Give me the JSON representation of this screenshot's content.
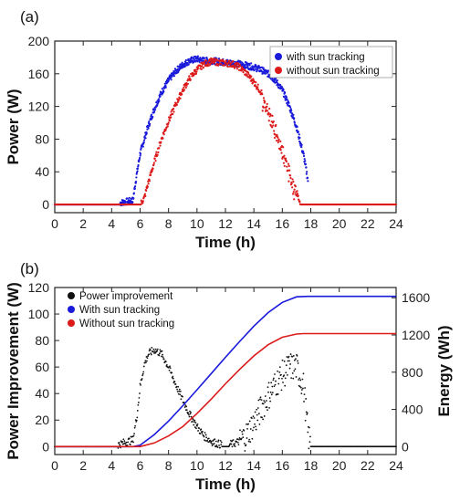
{
  "chart_data": [
    {
      "panel_label": "(a)",
      "type": "scatter",
      "xlabel": "Time (h)",
      "ylabel": "Power (W)",
      "xlim": [
        0,
        24
      ],
      "ylim": [
        -10,
        200
      ],
      "xticks": [
        0,
        2,
        4,
        6,
        8,
        10,
        12,
        14,
        16,
        18,
        20,
        22,
        24
      ],
      "yticks": [
        0,
        40,
        80,
        120,
        160,
        200
      ],
      "legend_position": "top-right",
      "series": [
        {
          "name": "with sun tracking",
          "color": "#1a1adb",
          "x": [
            0,
            2,
            4,
            5.5,
            5.7,
            6,
            6.5,
            7,
            7.5,
            8,
            8.5,
            9,
            9.5,
            10,
            10.5,
            11,
            11.5,
            12,
            12.5,
            13,
            13.5,
            14,
            14.5,
            15,
            15.5,
            16,
            16.5,
            17,
            17.5,
            17.8
          ],
          "y": [
            0,
            0,
            0,
            5,
            30,
            62,
            92,
            117,
            137,
            152,
            163,
            171,
            176,
            178,
            176,
            176,
            175,
            174,
            173,
            172,
            170,
            168,
            165,
            160,
            152,
            140,
            120,
            95,
            60,
            30
          ]
        },
        {
          "name": "without sun tracking",
          "color": "#dc1a1a",
          "x": [
            0,
            2,
            4,
            5.5,
            6,
            6.3,
            6.5,
            7,
            7.5,
            8,
            8.5,
            9,
            9.5,
            10,
            10.5,
            11,
            11.5,
            12,
            12.5,
            13,
            13.5,
            14,
            14.5,
            15,
            15.5,
            16,
            16.5,
            17,
            17.3,
            18,
            20,
            22,
            24
          ],
          "y": [
            0,
            0,
            0,
            0,
            0,
            8,
            22,
            52,
            80,
            102,
            122,
            140,
            155,
            165,
            172,
            175,
            174,
            173,
            172,
            168,
            160,
            150,
            138,
            120,
            98,
            75,
            45,
            15,
            0,
            0,
            0,
            0,
            0
          ]
        }
      ]
    },
    {
      "panel_label": "(b)",
      "type": "line",
      "xlabel": "Time (h)",
      "ylabel": "Power Improvement (W)",
      "y2label": "Energy (Wh)",
      "xlim": [
        0,
        24
      ],
      "ylim": [
        -6,
        120
      ],
      "y2lim": [
        -85,
        1710
      ],
      "xticks": [
        0,
        2,
        4,
        6,
        8,
        10,
        12,
        14,
        16,
        18,
        20,
        22,
        24
      ],
      "yticks": [
        0,
        20,
        40,
        60,
        80,
        100,
        120
      ],
      "y2ticks": [
        0,
        400,
        800,
        1200,
        1600
      ],
      "legend_position": "top-left",
      "series": [
        {
          "name": "Power improvement",
          "color": "#111111",
          "axis": "left",
          "style": "dots",
          "x": [
            0,
            4,
            5.5,
            5.8,
            6,
            6.3,
            6.6,
            7,
            7.5,
            8,
            8.5,
            9,
            9.5,
            10,
            10.5,
            11,
            11.5,
            12,
            12.5,
            13,
            13.5,
            14,
            14.5,
            15,
            15.5,
            16,
            16.5,
            17,
            17.5,
            17.8,
            18,
            20,
            22,
            24
          ],
          "y": [
            0,
            0,
            5,
            25,
            45,
            62,
            70,
            73,
            70,
            60,
            47,
            35,
            24,
            15,
            8,
            4,
            2,
            1,
            2,
            4,
            9,
            18,
            28,
            38,
            47,
            54,
            60,
            60,
            45,
            10,
            0,
            0,
            0,
            0
          ]
        },
        {
          "name": "With sun tracking",
          "color": "#1a1adb",
          "axis": "right",
          "style": "line",
          "x": [
            0,
            5.5,
            6,
            7,
            8,
            9,
            10,
            11,
            12,
            13,
            14,
            15,
            16,
            17,
            17.8,
            18,
            20,
            22,
            24
          ],
          "y": [
            0,
            0,
            15,
            130,
            275,
            440,
            610,
            785,
            960,
            1130,
            1295,
            1440,
            1550,
            1610,
            1615,
            1615,
            1615,
            1615,
            1615
          ]
        },
        {
          "name": "Without sun tracking",
          "color": "#dc1a1a",
          "axis": "right",
          "style": "line",
          "x": [
            0,
            6,
            7,
            8,
            9,
            10,
            11,
            12,
            13,
            14,
            15,
            16,
            17,
            17.5,
            18,
            20,
            22,
            24
          ],
          "y": [
            0,
            0,
            40,
            115,
            215,
            355,
            510,
            675,
            830,
            975,
            1095,
            1175,
            1210,
            1215,
            1215,
            1215,
            1215,
            1215
          ]
        }
      ]
    }
  ]
}
